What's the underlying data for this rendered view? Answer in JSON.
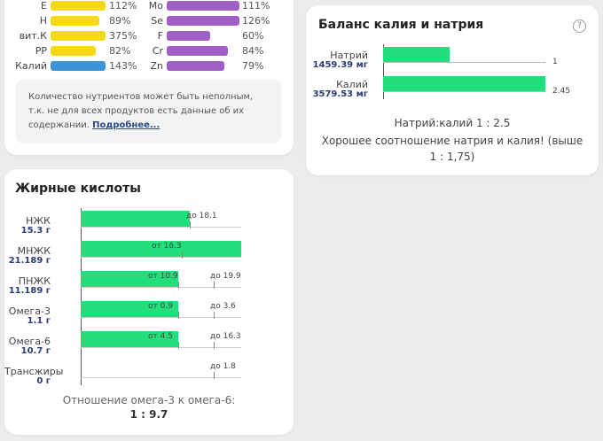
{
  "vitamins": {
    "left": [
      {
        "name": "E",
        "pct": "112%",
        "fill": 1.0,
        "color": "#f4d914"
      },
      {
        "name": "H",
        "pct": "89%",
        "fill": 0.89,
        "color": "#f4d914"
      },
      {
        "name": "вит.К",
        "pct": "375%",
        "fill": 1.0,
        "color": "#f4d914"
      },
      {
        "name": "PP",
        "pct": "82%",
        "fill": 0.82,
        "color": "#f4d914"
      },
      {
        "name": "Калий",
        "pct": "143%",
        "fill": 1.0,
        "color": "#3a95d8"
      }
    ],
    "right": [
      {
        "name": "Mo",
        "pct": "111%",
        "fill": 1.0,
        "color": "#a05fc7"
      },
      {
        "name": "Se",
        "pct": "126%",
        "fill": 1.0,
        "color": "#a05fc7"
      },
      {
        "name": "F",
        "pct": "60%",
        "fill": 0.6,
        "color": "#a05fc7"
      },
      {
        "name": "Cr",
        "pct": "84%",
        "fill": 0.84,
        "color": "#a05fc7"
      },
      {
        "name": "Zn",
        "pct": "79%",
        "fill": 0.79,
        "color": "#a05fc7"
      }
    ],
    "notice_text": "Количество нутриентов может быть неполным, т.к. не для всех продуктов есть данные об их содержании.",
    "notice_link": "Подробнее..."
  },
  "fats": {
    "title": "Жирные кислоты",
    "rows": [
      {
        "name": "НЖК",
        "value": "15.3 г",
        "fill": 0.68,
        "from": null,
        "to": "до 18.1",
        "to_pos": 0.68
      },
      {
        "name": "МНЖК",
        "value": "21.189 г",
        "fill": 1.0,
        "from": "от 16.3",
        "from_pos": 0.63,
        "to": null
      },
      {
        "name": "ПНЖК",
        "value": "11.189 г",
        "fill": 0.61,
        "from": "от 10.9",
        "from_pos": 0.61,
        "to": "до 19.9",
        "to_pos": 0.83
      },
      {
        "name": "Омега-3",
        "value": "1.1 г",
        "fill": 0.61,
        "from": "от 0.9",
        "from_pos": 0.61,
        "to": "до 3.6",
        "to_pos": 0.83
      },
      {
        "name": "Омега-6",
        "value": "10.7 г",
        "fill": 0.61,
        "from": "от 4.5",
        "from_pos": 0.61,
        "to": "до 16.3",
        "to_pos": 0.83
      },
      {
        "name": "Трансжиры",
        "value": "0 г",
        "fill": 0,
        "from": null,
        "to": "до 1.8",
        "to_pos": 0.83
      }
    ],
    "ratio_label": "Отношение омега-3 к омега-6:",
    "ratio_value": "1 : 9.7"
  },
  "balance": {
    "title": "Баланс калия и натрия",
    "help_icon": "?",
    "rows": [
      {
        "name": "Натрий",
        "value": "1459.39 мг",
        "fill": 0.41,
        "num": "1"
      },
      {
        "name": "Калий",
        "value": "3579.53 мг",
        "fill": 1.0,
        "num": "2.45"
      }
    ],
    "ratio_text": "Натрий:калий 1 : 2.5",
    "verdict_text": "Хорошее соотношение натрия и калия! (выше 1 : 1,75)"
  },
  "colors": {
    "fat_bar": "#23de7a",
    "balance_bar": "#23de7a",
    "value_text": "#2c3d78"
  }
}
